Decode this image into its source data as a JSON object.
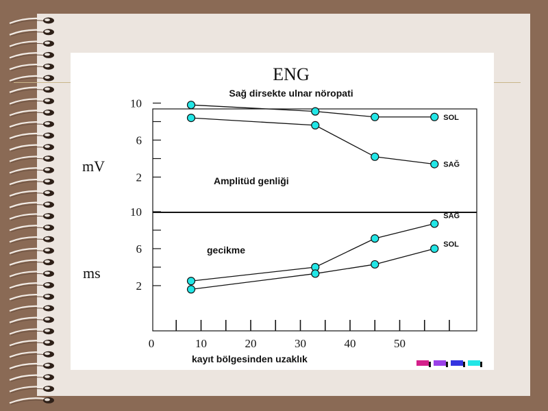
{
  "figure": {
    "title": "ENG",
    "subtitle": "Sağ dirsekte ulnar nöropati"
  },
  "chart_data": [
    {
      "type": "line",
      "title": "Amplitüd genliği",
      "ylabel": "mV",
      "ylim": [
        0,
        12
      ],
      "yticks": [
        "2",
        "6",
        "10"
      ],
      "xlim": [
        0,
        65
      ],
      "series": [
        {
          "name": "SOL",
          "x": [
            8,
            33,
            45,
            57
          ],
          "values": [
            9.8,
            9.1,
            8.5,
            8.5
          ]
        },
        {
          "name": "SAĞ",
          "x": [
            8,
            33,
            45,
            57
          ],
          "values": [
            8.4,
            7.6,
            4.2,
            3.4
          ]
        }
      ]
    },
    {
      "type": "line",
      "title": "gecikme",
      "ylabel": "ms",
      "xlabel": "kayıt bölgesinden uzaklık",
      "ylim": [
        0,
        12
      ],
      "yticks": [
        "2",
        "6",
        "10"
      ],
      "xlim": [
        0,
        65
      ],
      "xticks": [
        "0",
        "10",
        "20",
        "30",
        "40",
        "50"
      ],
      "series": [
        {
          "name": "SAĞ",
          "x": [
            8,
            33,
            45,
            57
          ],
          "values": [
            2.5,
            4.0,
            7.1,
            8.7
          ]
        },
        {
          "name": "SOL",
          "x": [
            8,
            33,
            45,
            57
          ],
          "values": [
            1.6,
            3.3,
            4.3,
            6.0
          ]
        }
      ]
    }
  ],
  "colors": {
    "marker": "#22e6e6",
    "background": "#8a6a55",
    "slide": "#ece5df",
    "swatches": [
      "#d4208a",
      "#9a40e8",
      "#3434e0",
      "#22e6e6"
    ]
  }
}
